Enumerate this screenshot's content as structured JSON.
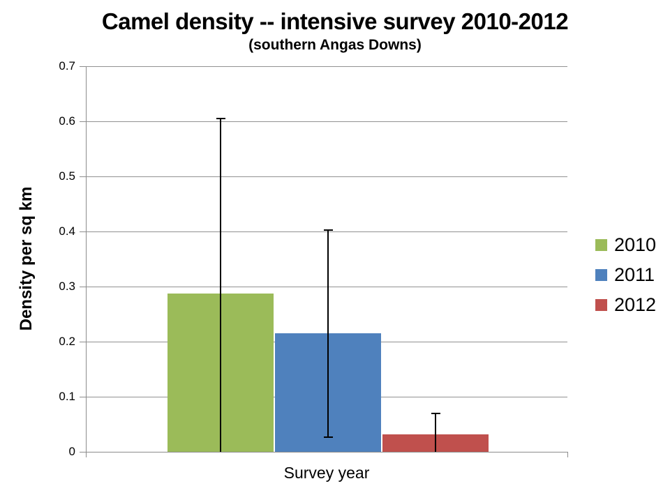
{
  "page": {
    "background": "#ffffff"
  },
  "chart_data": {
    "type": "bar",
    "title": "Camel density -- intensive survey 2010-2012",
    "subtitle": "(southern Angas Downs)",
    "xlabel": "Survey year",
    "ylabel": "Density per sq km",
    "ylim": [
      0,
      0.7
    ],
    "yticks": [
      0,
      0.1,
      0.2,
      0.3,
      0.4,
      0.5,
      0.6,
      0.7
    ],
    "ytick_labels": [
      "0",
      "0.1",
      "0.2",
      "0.3",
      "0.4",
      "0.5",
      "0.6",
      "0.7"
    ],
    "grid": true,
    "legend_position": "right",
    "gridline_color": "#919191",
    "axis_color": "#8c8c8c",
    "error_bar_color": "#000000",
    "series": [
      {
        "name": "2010",
        "value": 0.287,
        "error_high": 0.605,
        "error_low": 0,
        "error_low_cap": false,
        "color": "#9BBB59"
      },
      {
        "name": "2011",
        "value": 0.215,
        "error_high": 0.403,
        "error_low": 0.027,
        "error_low_cap": true,
        "color": "#4F81BD"
      },
      {
        "name": "2012",
        "value": 0.032,
        "error_high": 0.07,
        "error_low": 0,
        "error_low_cap": false,
        "color": "#C0504D"
      }
    ]
  }
}
